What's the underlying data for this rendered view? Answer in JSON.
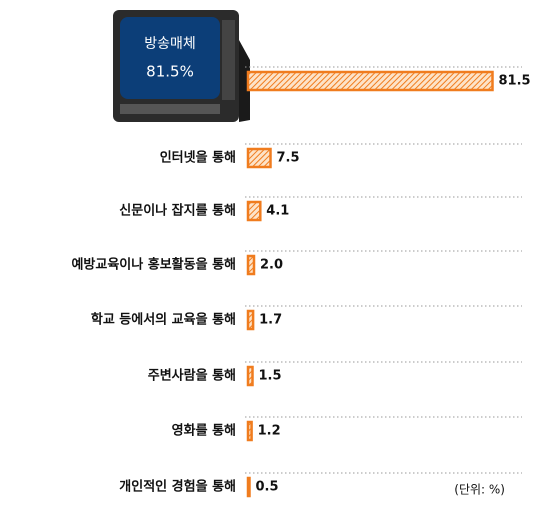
{
  "chart_data": {
    "type": "bar",
    "orientation": "horizontal",
    "categories": [
      "방송매체",
      "인터넷을 통해",
      "신문이나 잡지를 통해",
      "예방교육이나 홍보활동을 통해",
      "학교 등에서의 교육을 통해",
      "주변사람을 통해",
      "영화를 통해",
      "개인적인 경험을 통해"
    ],
    "values": [
      81.5,
      7.5,
      4.1,
      2.0,
      1.7,
      1.5,
      1.2,
      0.5
    ],
    "value_labels": [
      "81.5",
      "7.5",
      "4.1",
      "2.0",
      "1.7",
      "1.5",
      "1.2",
      "0.5"
    ],
    "annotation": "81.5%",
    "unit_note": "(단위: %)",
    "color": "#f07c1e",
    "xlim": [
      0,
      100
    ]
  }
}
